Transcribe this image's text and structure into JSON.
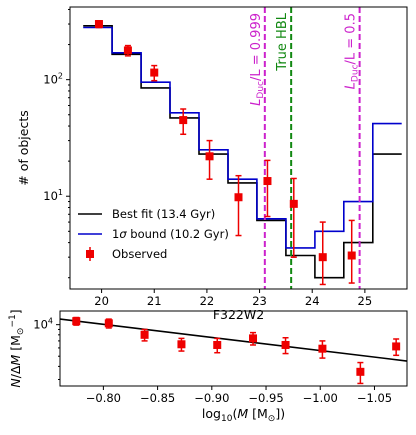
{
  "chart_data": [
    {
      "type": "line",
      "xlabel": "F322W2",
      "ylabel": "# of objects",
      "xlim": [
        19.4,
        25.8
      ],
      "ylim": [
        1.6,
        420
      ],
      "yscale": "log",
      "x_ticks": [
        "20",
        "21",
        "22",
        "23",
        "24",
        "25"
      ],
      "x_tick_values": [
        20,
        21,
        22,
        23,
        24,
        25
      ],
      "y_ticks": [
        {
          "value": 10,
          "base": "10",
          "exp": "1"
        },
        {
          "value": 100,
          "base": "10",
          "exp": "2"
        }
      ],
      "bin_edges": [
        19.65,
        20.2,
        20.75,
        21.3,
        21.85,
        22.4,
        22.95,
        23.5,
        24.05,
        24.6,
        25.15,
        25.7
      ],
      "series": [
        {
          "name": "Best fit (13.4 Gyr)",
          "color": "#000000",
          "kind": "step",
          "values": [
            290,
            165,
            85,
            47,
            23,
            13,
            6.2,
            3.1,
            2.0,
            4.0,
            23
          ]
        },
        {
          "name": "1σ bound (10.2 Gyr)",
          "legend_prefix": "1",
          "legend_sigma": "σ",
          "legend_suffix": " bound (10.2 Gyr)",
          "color": "#0000cc",
          "kind": "step",
          "values": [
            280,
            170,
            95,
            52,
            25,
            14,
            6.4,
            3.6,
            5.0,
            9.0,
            42
          ]
        },
        {
          "name": "Observed",
          "color": "#ee0000",
          "kind": "errorbar",
          "points": [
            {
              "x": 19.95,
              "y": 300,
              "lo": 20,
              "hi": 20
            },
            {
              "x": 20.5,
              "y": 178,
              "lo": 18,
              "hi": 18
            },
            {
              "x": 21.0,
              "y": 115,
              "lo": 17,
              "hi": 17
            },
            {
              "x": 21.55,
              "y": 45,
              "lo": 11,
              "hi": 11
            },
            {
              "x": 22.05,
              "y": 22,
              "lo": 8,
              "hi": 8
            },
            {
              "x": 22.6,
              "y": 9.8,
              "lo": 5.2,
              "hi": 5.2
            },
            {
              "x": 23.15,
              "y": 13.5,
              "lo": 6.8,
              "hi": 6.8
            },
            {
              "x": 23.65,
              "y": 8.6,
              "lo": 5.6,
              "hi": 5.6
            },
            {
              "x": 24.2,
              "y": 3.0,
              "lo": 1.25,
              "hi": 3.0
            },
            {
              "x": 24.75,
              "y": 3.1,
              "lo": 1.3,
              "hi": 3.1
            }
          ]
        }
      ],
      "vlines": [
        {
          "x": 23.1,
          "color": "#cc22cc",
          "style": "dashed",
          "label_main": "L",
          "label_sub": "Duc",
          "label_rest": "/L = 0.999"
        },
        {
          "x": 23.6,
          "color": "#118811",
          "style": "dashed",
          "label": "True HBL"
        },
        {
          "x": 24.9,
          "color": "#cc22cc",
          "style": "dashed",
          "label_main": "L",
          "label_sub": "Duc",
          "label_rest": "/L = 0.5"
        }
      ],
      "legend": {
        "placement": "lower-left"
      }
    },
    {
      "type": "scatter",
      "xlabel_func": "log",
      "xlabel_sub": "10",
      "xlabel_open": "(",
      "xlabel_var": "M",
      "xlabel_unit_open": " [M",
      "xlabel_unit_sub": "⊙",
      "xlabel_close": "])",
      "ylabel_num": "N",
      "ylabel_slash": "/Δ",
      "ylabel_var": "M",
      "ylabel_unit_open": " [M",
      "ylabel_unit_sub": "⊙",
      "ylabel_unit_sup": "−1",
      "ylabel_close": "]",
      "xlim": [
        -0.76,
        -1.08
      ],
      "x_inverted": true,
      "yscale": "log",
      "ylim": [
        2600,
        13500
      ],
      "x_ticks": [
        "−0.80",
        "−0.85",
        "−0.90",
        "−0.95",
        "−1.00",
        "−1.05"
      ],
      "x_tick_values": [
        -0.8,
        -0.85,
        -0.9,
        -0.95,
        -1.0,
        -1.05
      ],
      "y_ticks": [
        {
          "value": 10000,
          "base": "10",
          "exp": "4"
        }
      ],
      "fit_line": {
        "color": "#000000",
        "x": [
          -0.76,
          -1.08
        ],
        "y": [
          11300,
          4500
        ]
      },
      "series": [
        {
          "name": "Observed",
          "color": "#ee0000",
          "points": [
            {
              "x": -0.775,
              "y": 10800,
              "lo": 900,
              "hi": 900
            },
            {
              "x": -0.805,
              "y": 10300,
              "lo": 1000,
              "hi": 1000
            },
            {
              "x": -0.838,
              "y": 8000,
              "lo": 1000,
              "hi": 1000
            },
            {
              "x": -0.872,
              "y": 6500,
              "lo": 900,
              "hi": 900
            },
            {
              "x": -0.905,
              "y": 6400,
              "lo": 1000,
              "hi": 1000
            },
            {
              "x": -0.938,
              "y": 7400,
              "lo": 1000,
              "hi": 1000
            },
            {
              "x": -0.968,
              "y": 6400,
              "lo": 1100,
              "hi": 1100
            },
            {
              "x": -1.002,
              "y": 5900,
              "lo": 1100,
              "hi": 1100
            },
            {
              "x": -1.037,
              "y": 3550,
              "lo": 800,
              "hi": 800
            },
            {
              "x": -1.07,
              "y": 6200,
              "lo": 1100,
              "hi": 1100
            }
          ]
        }
      ]
    }
  ]
}
